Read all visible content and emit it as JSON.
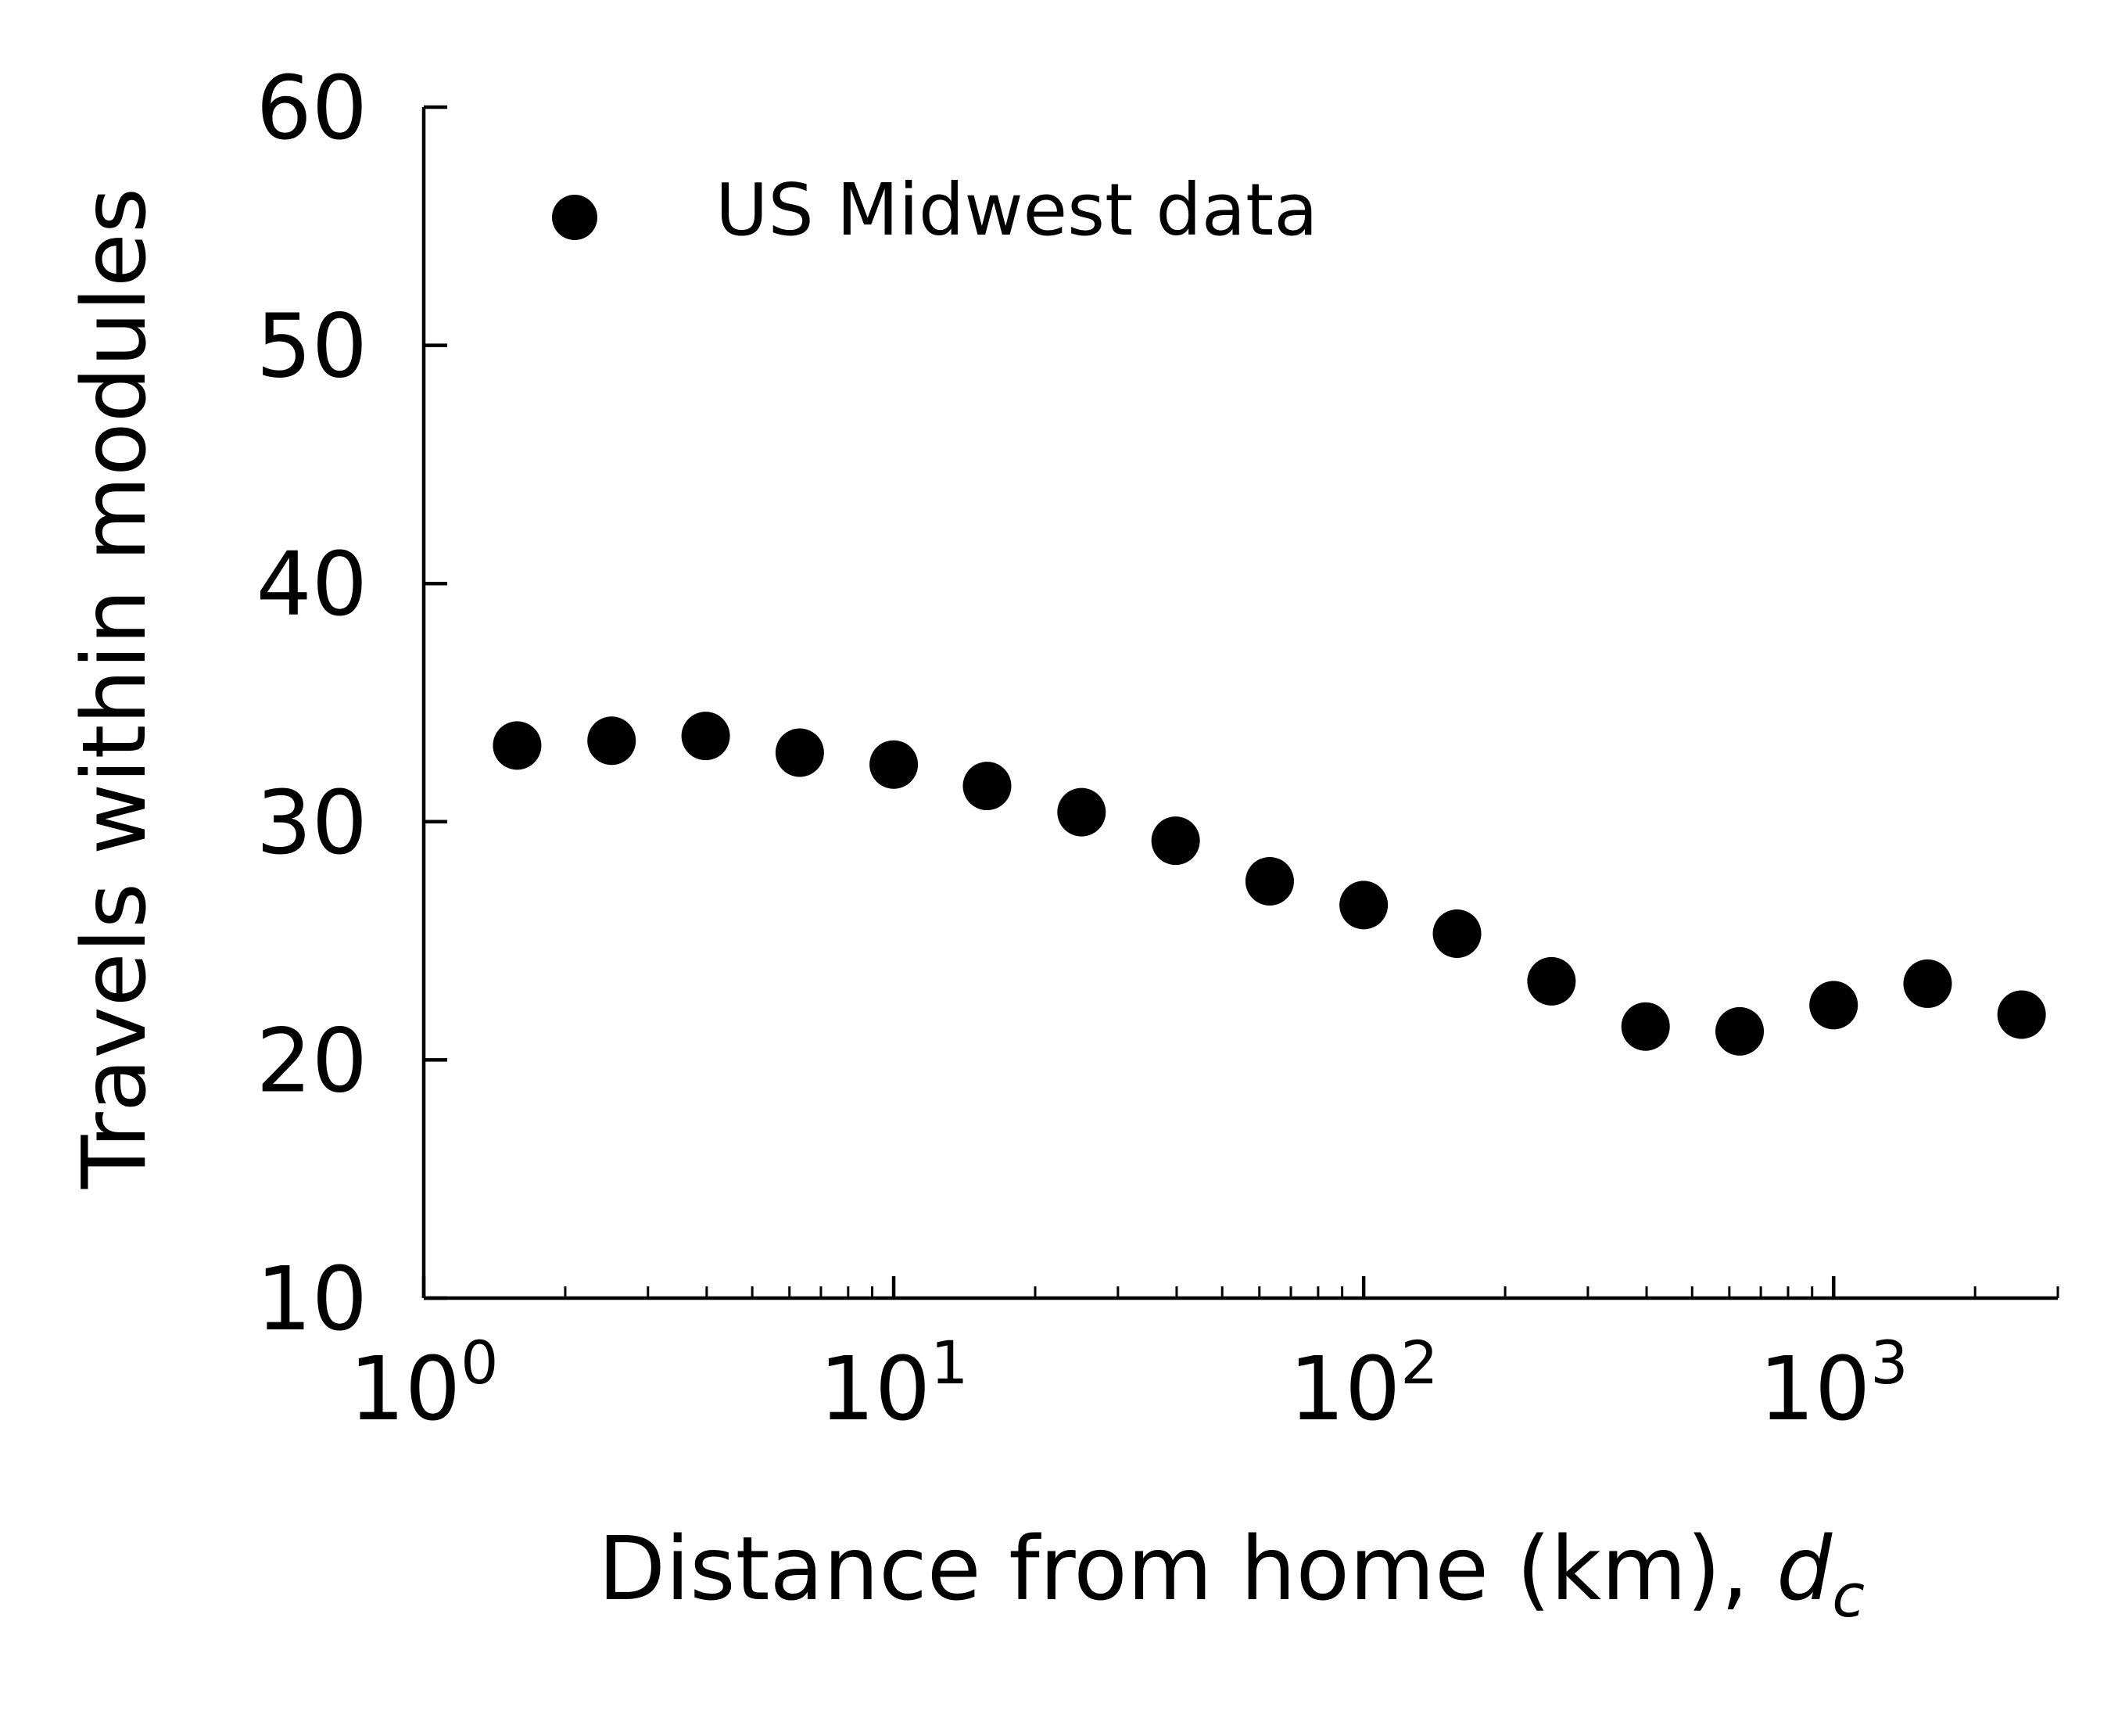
{
  "chart_data": {
    "type": "scatter",
    "title": "",
    "xlabel": "Distance from home (km), ",
    "xlabel_var": "d",
    "xlabel_sub": "c",
    "ylabel": "Travels within modules",
    "xscale": "log",
    "xlim": [
      1,
      3000
    ],
    "ylim": [
      10,
      60
    ],
    "yticks": [
      10,
      20,
      30,
      40,
      50,
      60
    ],
    "ytick_labels": [
      "10",
      "20",
      "30",
      "40",
      "50",
      "60"
    ],
    "xticks": [
      1,
      10,
      100,
      1000
    ],
    "xtick_labels": [
      {
        "base": "10",
        "exp": "0"
      },
      {
        "base": "10",
        "exp": "1"
      },
      {
        "base": "10",
        "exp": "2"
      },
      {
        "base": "10",
        "exp": "3"
      }
    ],
    "grid": false,
    "legend_position": "top-left",
    "series": [
      {
        "name": "US Midwest data",
        "color": "#000000",
        "marker": "circle",
        "x": [
          1.58,
          2.51,
          3.98,
          6.31,
          10.0,
          15.8,
          25.1,
          39.8,
          63.1,
          100,
          158,
          251,
          398,
          631,
          1000,
          1585,
          2512
        ],
        "y": [
          33.2,
          33.4,
          33.6,
          32.9,
          32.4,
          31.5,
          30.4,
          29.2,
          27.5,
          26.5,
          25.3,
          23.3,
          21.4,
          21.2,
          22.3,
          23.2,
          21.9
        ]
      }
    ]
  }
}
